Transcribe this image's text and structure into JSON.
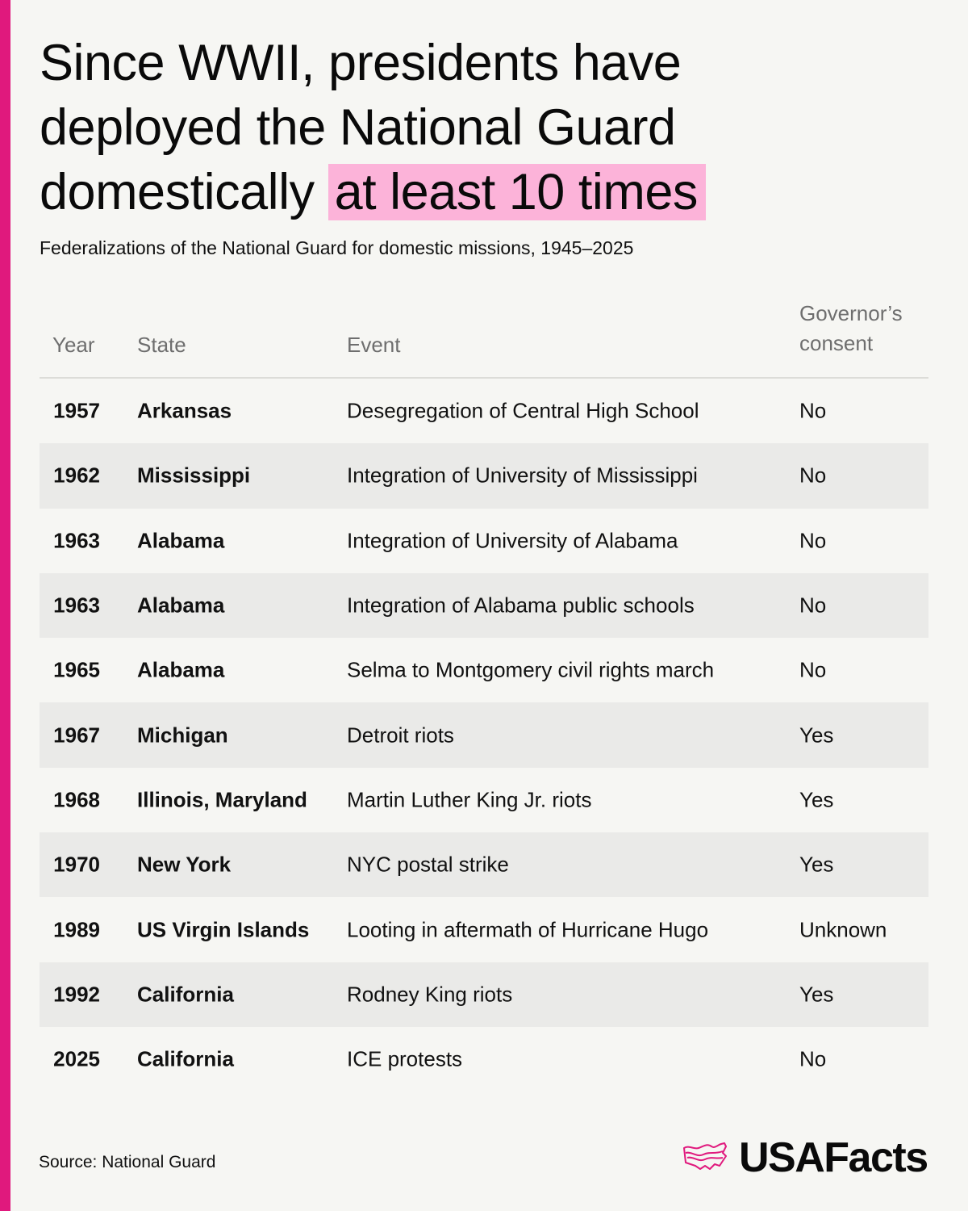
{
  "header": {
    "title_main": "Since WWII, presidents have deployed the National Guard domestically",
    "title_highlight": "at least 10 times",
    "subtitle": "Federalizations of the National Guard for domestic missions, 1945–2025"
  },
  "colors": {
    "accent": "#e0197d",
    "highlight": "#fcb3d9",
    "background": "#f6f6f3",
    "row_stripe": "#eaeae8"
  },
  "table": {
    "columns": [
      "Year",
      "State",
      "Event",
      "Governor’s consent"
    ],
    "rows": [
      {
        "year": "1957",
        "state": "Arkansas",
        "event": "Desegregation of Central High School",
        "consent": "No"
      },
      {
        "year": "1962",
        "state": "Mississippi",
        "event": "Integration of University of Mississippi",
        "consent": "No"
      },
      {
        "year": "1963",
        "state": "Alabama",
        "event": "Integration of University of Alabama",
        "consent": "No"
      },
      {
        "year": "1963",
        "state": "Alabama",
        "event": "Integration of Alabama public schools",
        "consent": "No"
      },
      {
        "year": "1965",
        "state": "Alabama",
        "event": "Selma to Montgomery civil rights march",
        "consent": "No"
      },
      {
        "year": "1967",
        "state": "Michigan",
        "event": "Detroit riots",
        "consent": "Yes"
      },
      {
        "year": "1968",
        "state": "Illinois, Maryland",
        "event": "Martin Luther King Jr. riots",
        "consent": "Yes"
      },
      {
        "year": "1970",
        "state": "New York",
        "event": "NYC postal strike",
        "consent": "Yes"
      },
      {
        "year": "1989",
        "state": "US Virgin Islands",
        "event": "Looting in aftermath of Hurricane Hugo",
        "consent": "Unknown"
      },
      {
        "year": "1992",
        "state": "California",
        "event": "Rodney King riots",
        "consent": "Yes"
      },
      {
        "year": "2025",
        "state": "California",
        "event": "ICE protests",
        "consent": "No"
      }
    ]
  },
  "footer": {
    "source": "Source: National Guard",
    "logo_text": "USAFacts",
    "logo_icon": "us-map-flag-icon"
  },
  "chart_data": {
    "type": "table",
    "title": "Since WWII, presidents have deployed the National Guard domestically at least 10 times",
    "subtitle": "Federalizations of the National Guard for domestic missions, 1945–2025",
    "columns": [
      "Year",
      "State",
      "Event",
      "Governor’s consent"
    ],
    "rows": [
      [
        "1957",
        "Arkansas",
        "Desegregation of Central High School",
        "No"
      ],
      [
        "1962",
        "Mississippi",
        "Integration of University of Mississippi",
        "No"
      ],
      [
        "1963",
        "Alabama",
        "Integration of University of Alabama",
        "No"
      ],
      [
        "1963",
        "Alabama",
        "Integration of Alabama public schools",
        "No"
      ],
      [
        "1965",
        "Alabama",
        "Selma to Montgomery civil rights march",
        "No"
      ],
      [
        "1967",
        "Michigan",
        "Detroit riots",
        "Yes"
      ],
      [
        "1968",
        "Illinois, Maryland",
        "Martin Luther King Jr. riots",
        "Yes"
      ],
      [
        "1970",
        "New York",
        "NYC postal strike",
        "Yes"
      ],
      [
        "1989",
        "US Virgin Islands",
        "Looting in aftermath of Hurricane Hugo",
        "Unknown"
      ],
      [
        "1992",
        "California",
        "Rodney King riots",
        "Yes"
      ],
      [
        "2025",
        "California",
        "ICE protests",
        "No"
      ]
    ],
    "source": "National Guard"
  }
}
